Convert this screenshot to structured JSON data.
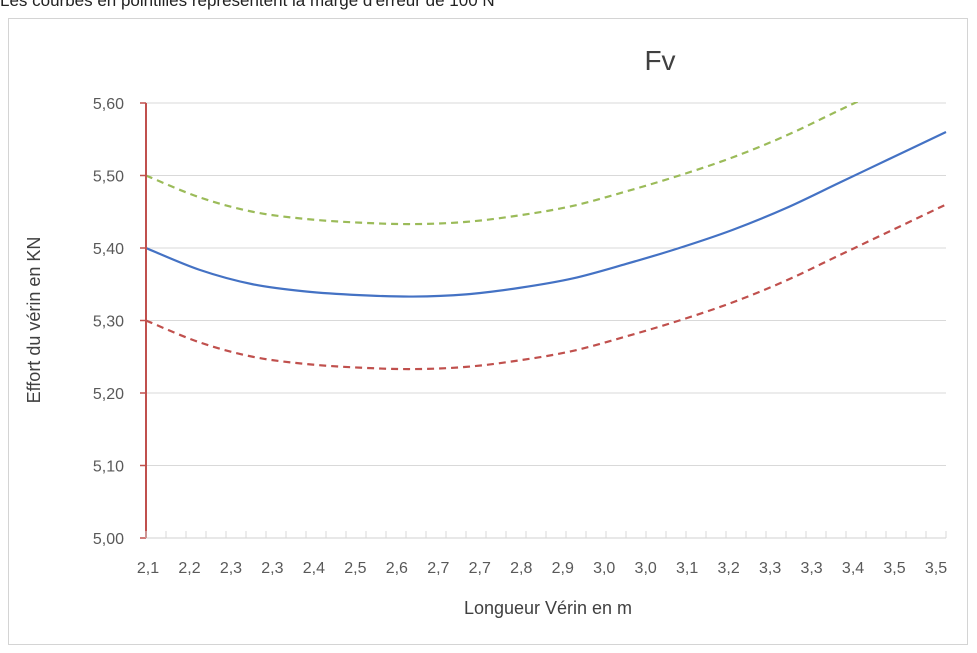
{
  "page": {
    "caption": "Les courbes en pointillés représentent la marge d'erreur de 100 N"
  },
  "chart_data": {
    "type": "line",
    "title": "Fv",
    "xlabel": "Longueur Vérin en m",
    "ylabel": "Effort du vérin en KN",
    "ylim": [
      5.0,
      5.6
    ],
    "yticks": [
      "5,00",
      "5,10",
      "5,20",
      "5,30",
      "5,40",
      "5,50",
      "5,60"
    ],
    "xtick_labels": [
      "2,1",
      "2,2",
      "2,3",
      "2,3",
      "2,4",
      "2,5",
      "2,6",
      "2,7",
      "2,7",
      "2,8",
      "2,9",
      "3,0",
      "3,0",
      "3,1",
      "3,2",
      "3,3",
      "3,3",
      "3,4",
      "3,5",
      "3,5"
    ],
    "x": [
      2.1,
      2.2,
      2.3,
      2.4,
      2.5,
      2.6,
      2.7,
      2.8,
      2.9,
      3.0,
      3.1,
      3.2,
      3.3,
      3.4,
      3.5,
      3.6
    ],
    "grid": true,
    "series": [
      {
        "values": [
          5.4,
          5.37,
          5.35,
          5.34,
          5.335,
          5.333,
          5.336,
          5.345,
          5.358,
          5.378,
          5.4,
          5.425,
          5.455,
          5.49,
          5.525,
          5.56
        ],
        "color": "#4472c4",
        "style": "solid"
      },
      {
        "values": [
          5.5,
          5.47,
          5.45,
          5.44,
          5.435,
          5.433,
          5.436,
          5.445,
          5.458,
          5.478,
          5.5,
          5.525,
          5.555,
          5.59,
          5.625,
          5.66
        ],
        "color": "#9bbb59",
        "style": "dashed"
      },
      {
        "values": [
          5.3,
          5.27,
          5.25,
          5.24,
          5.235,
          5.233,
          5.236,
          5.245,
          5.258,
          5.278,
          5.3,
          5.325,
          5.355,
          5.39,
          5.425,
          5.46
        ],
        "color": "#c0504d",
        "style": "dashed"
      }
    ],
    "colors": {
      "vertical_axis": "#c0504d",
      "grid": "#d9d9d9"
    }
  }
}
